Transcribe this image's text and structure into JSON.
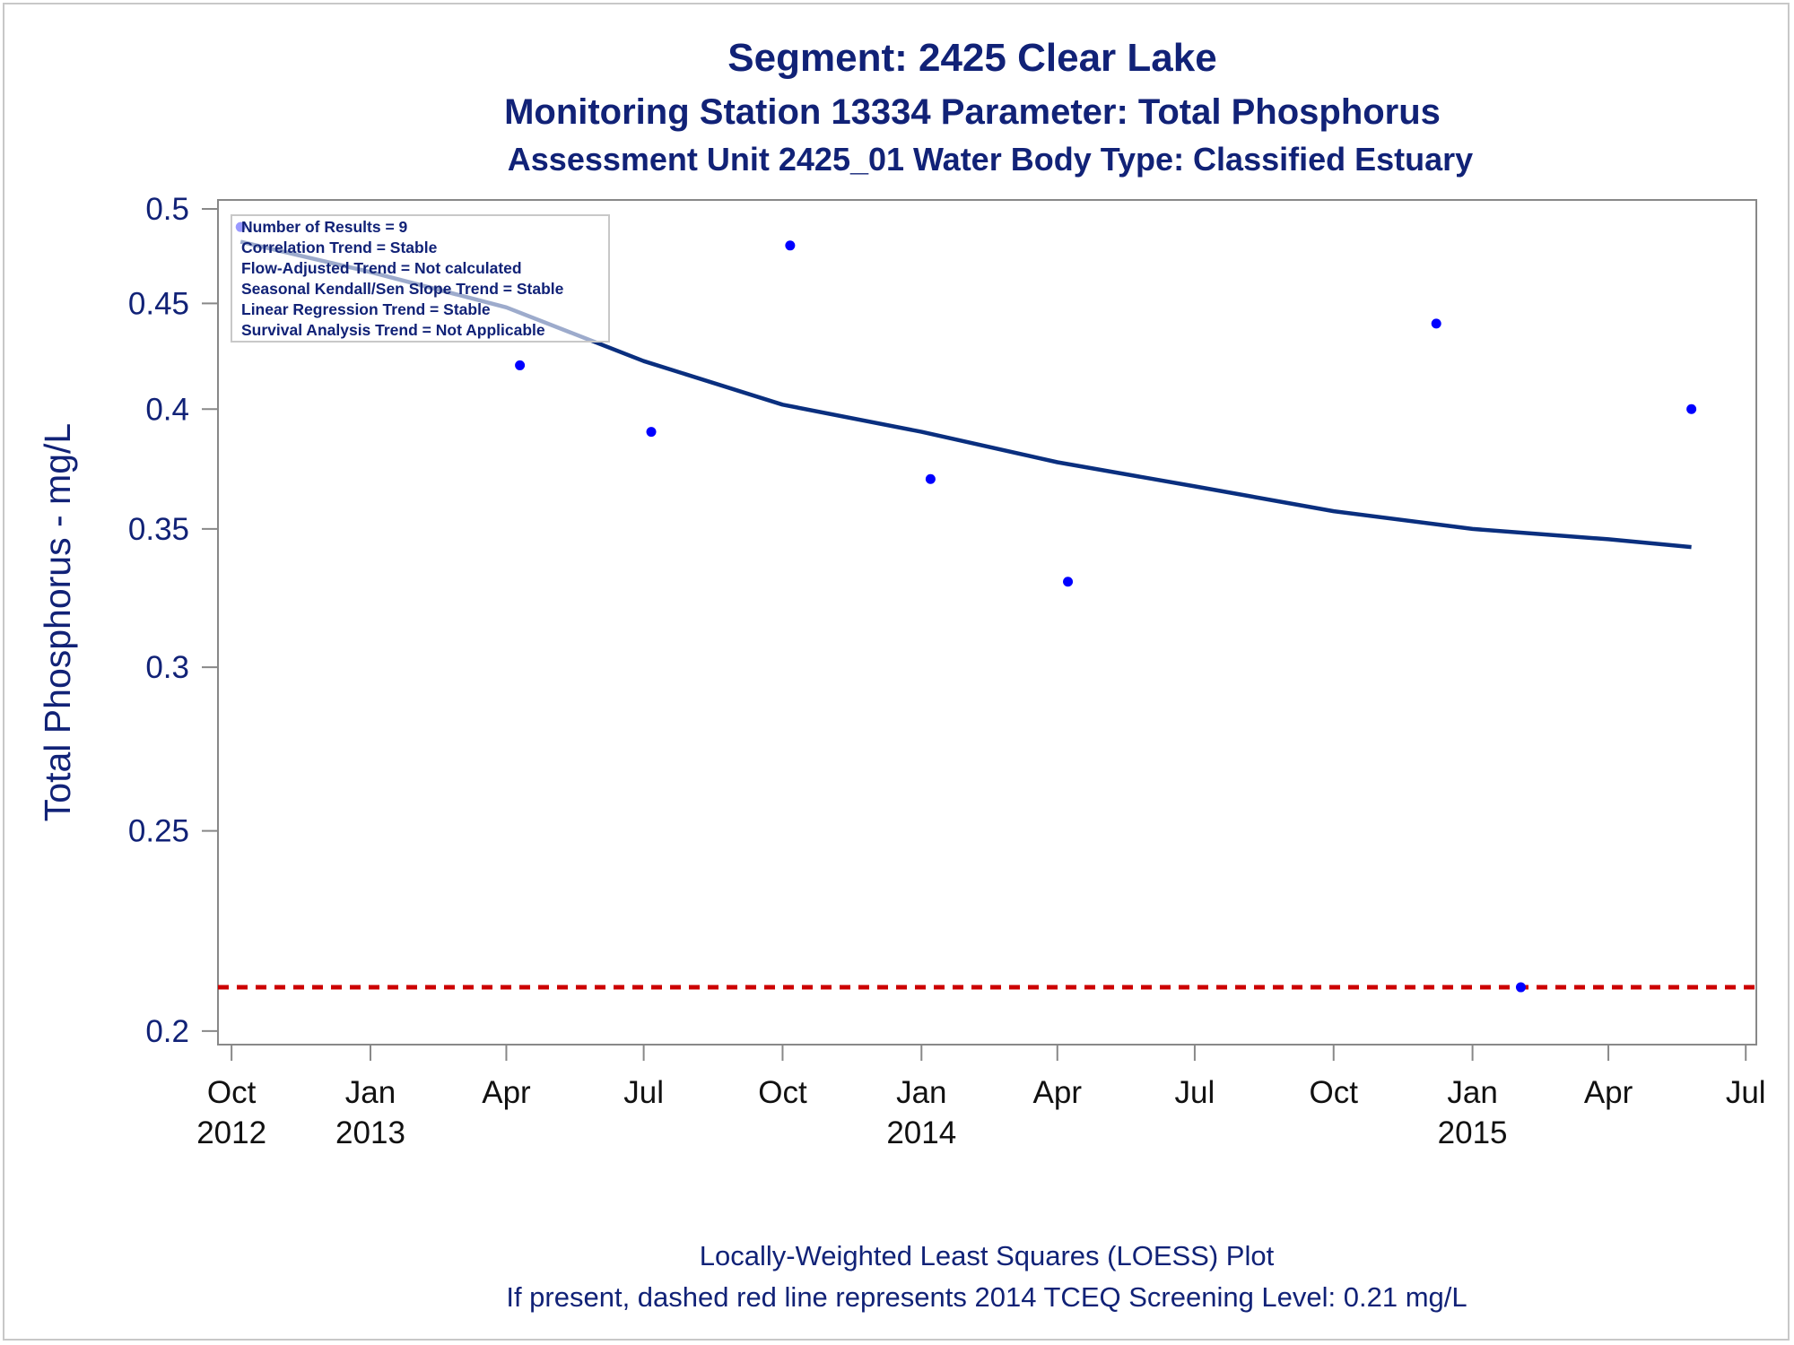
{
  "colors": {
    "title": "#112277",
    "loess_line": "#0a2f7f",
    "points": "#0000ff",
    "screening_line": "#cc0000",
    "axis": "#888888",
    "frame": "#c8c8c8"
  },
  "titles": {
    "line1": "Segment: 2425  Clear Lake",
    "line2": "Monitoring Station 13334 Parameter: Total Phosphorus",
    "line3": "Assessment Unit 2425_01   Water Body Type: Classified Estuary"
  },
  "footnotes": {
    "line1": "Locally-Weighted Least Squares (LOESS) Plot",
    "line2": "If present, dashed red line represents 2014 TCEQ Screening Level: 0.21 mg/L"
  },
  "stats_box": [
    "Number of Results = 9",
    "Correlation Trend = Stable",
    "Flow-Adjusted Trend = Not calculated",
    "Seasonal Kendall/Sen Slope Trend = Stable",
    "Linear Regression Trend = Stable",
    "Survival Analysis Trend = Not Applicable"
  ],
  "chart_data": {
    "type": "scatter",
    "ylabel": "Total Phosphorus - mg/L",
    "xlabel": "",
    "y_scale": "log",
    "ylim": [
      0.197,
      0.505
    ],
    "y_ticks": [
      {
        "value": 0.2,
        "label": "0.2"
      },
      {
        "value": 0.25,
        "label": "0.25"
      },
      {
        "value": 0.3,
        "label": "0.3"
      },
      {
        "value": 0.35,
        "label": "0.35"
      },
      {
        "value": 0.4,
        "label": "0.4"
      },
      {
        "value": 0.45,
        "label": "0.45"
      },
      {
        "value": 0.5,
        "label": "0.5"
      }
    ],
    "xlim": [
      "2012-09-22",
      "2015-07-08"
    ],
    "x_ticks": [
      {
        "date": "2012-10-01",
        "month": "Oct",
        "year": "2012"
      },
      {
        "date": "2013-01-01",
        "month": "Jan",
        "year": "2013"
      },
      {
        "date": "2013-04-01",
        "month": "Apr",
        "year": ""
      },
      {
        "date": "2013-07-01",
        "month": "Jul",
        "year": ""
      },
      {
        "date": "2013-10-01",
        "month": "Oct",
        "year": ""
      },
      {
        "date": "2014-01-01",
        "month": "Jan",
        "year": "2014"
      },
      {
        "date": "2014-04-01",
        "month": "Apr",
        "year": ""
      },
      {
        "date": "2014-07-01",
        "month": "Jul",
        "year": ""
      },
      {
        "date": "2014-10-01",
        "month": "Oct",
        "year": ""
      },
      {
        "date": "2015-01-01",
        "month": "Jan",
        "year": "2015"
      },
      {
        "date": "2015-04-01",
        "month": "Apr",
        "year": ""
      },
      {
        "date": "2015-07-01",
        "month": "Jul",
        "year": ""
      }
    ],
    "points": [
      {
        "date": "2012-10-07",
        "value": 0.49
      },
      {
        "date": "2013-04-10",
        "value": 0.42
      },
      {
        "date": "2013-07-06",
        "value": 0.39
      },
      {
        "date": "2013-10-06",
        "value": 0.48
      },
      {
        "date": "2014-01-07",
        "value": 0.37
      },
      {
        "date": "2014-04-08",
        "value": 0.33
      },
      {
        "date": "2014-12-08",
        "value": 0.44
      },
      {
        "date": "2015-02-02",
        "value": 0.21
      },
      {
        "date": "2015-05-26",
        "value": 0.4
      }
    ],
    "loess": [
      {
        "date": "2012-10-07",
        "value": 0.482
      },
      {
        "date": "2013-01-01",
        "value": 0.466
      },
      {
        "date": "2013-04-01",
        "value": 0.448
      },
      {
        "date": "2013-07-01",
        "value": 0.422
      },
      {
        "date": "2013-10-01",
        "value": 0.402
      },
      {
        "date": "2014-01-01",
        "value": 0.39
      },
      {
        "date": "2014-04-01",
        "value": 0.377
      },
      {
        "date": "2014-07-01",
        "value": 0.367
      },
      {
        "date": "2014-10-01",
        "value": 0.357
      },
      {
        "date": "2015-01-01",
        "value": 0.35
      },
      {
        "date": "2015-04-01",
        "value": 0.346
      },
      {
        "date": "2015-05-26",
        "value": 0.343
      }
    ],
    "screening_level": 0.21
  }
}
